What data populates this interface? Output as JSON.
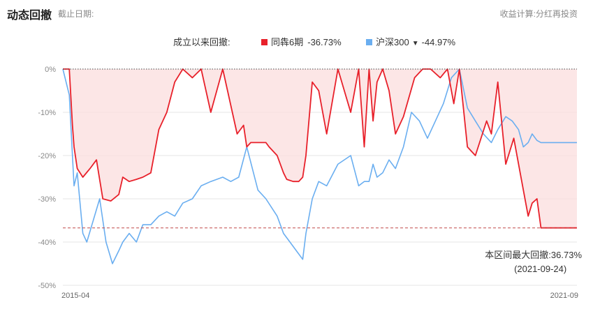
{
  "header": {
    "title": "动态回撤",
    "date_label": "截止日期:",
    "calc_label": "收益计算:分红再投资"
  },
  "legend": {
    "label": "成立以来回撤:",
    "caret": "▼"
  },
  "colors": {
    "fund": "#e8202a",
    "index": "#6aaef0",
    "fill": "#fbdede",
    "grid": "#e6e6e6",
    "dashed": "#c04848"
  },
  "max_drawdown": {
    "label": "本区间最大回撤:",
    "value": "36.73%",
    "date": "(2021-09-24)"
  },
  "chart_data": {
    "type": "line",
    "x_range": [
      "2015-04",
      "2021-09"
    ],
    "x_tick_labels": [
      "2015-04",
      "2021-09"
    ],
    "y_tick_labels": [
      "0%",
      "-10%",
      "-20%",
      "-30%",
      "-40%",
      "-50%"
    ],
    "ylim": [
      -50,
      0
    ],
    "ytick_values": [
      0,
      -10,
      -20,
      -30,
      -40,
      -50
    ],
    "grid": true,
    "max_drawdown_value": -36.73,
    "series": [
      {
        "name": "同犇6期",
        "summary": "-36.73%",
        "x": [
          2015.3,
          2015.34,
          2015.38,
          2015.42,
          2015.44,
          2015.48,
          2015.55,
          2015.64,
          2015.72,
          2015.8,
          2015.9,
          2016.0,
          2016.05,
          2016.13,
          2016.22,
          2016.3,
          2016.4,
          2016.5,
          2016.6,
          2016.7,
          2016.8,
          2016.92,
          2017.03,
          2017.15,
          2017.3,
          2017.48,
          2017.56,
          2017.6,
          2017.65,
          2017.74,
          2017.84,
          2017.88,
          2017.98,
          2018.06,
          2018.1,
          2018.18,
          2018.25,
          2018.3,
          2018.34,
          2018.42,
          2018.5,
          2018.6,
          2018.74,
          2018.9,
          2019.0,
          2019.07,
          2019.13,
          2019.18,
          2019.23,
          2019.3,
          2019.38,
          2019.46,
          2019.56,
          2019.7,
          2019.8,
          2019.9,
          2020.02,
          2020.11,
          2020.19,
          2020.26,
          2020.36,
          2020.46,
          2020.6,
          2020.66,
          2020.74,
          2020.84,
          2020.94,
          2021.06,
          2021.12,
          2021.17,
          2021.23,
          2021.28,
          2021.36,
          2021.44,
          2021.5,
          2021.56,
          2021.62,
          2021.66,
          2021.7,
          2021.73
        ],
        "values": [
          0,
          0,
          0,
          -13,
          -18,
          -23,
          -25,
          -23,
          -21,
          -30,
          -30.5,
          -29,
          -25,
          -26,
          -25.5,
          -25,
          -24,
          -14,
          -10,
          -3,
          0,
          -2,
          0,
          -10,
          0,
          -15,
          -13,
          -18,
          -17,
          -17,
          -17,
          -18,
          -20,
          -24,
          -25.5,
          -26,
          -26,
          -25,
          -20,
          -3,
          -5,
          -15,
          0,
          -10,
          0,
          -18,
          0,
          -12,
          -3,
          0,
          -5,
          -15,
          -11,
          -2,
          0,
          0,
          -2,
          0,
          -8,
          0,
          -18,
          -20,
          -12,
          -15,
          -3,
          -22,
          -16,
          -28,
          -34,
          -31,
          -30,
          -36.73,
          -36.73,
          -36.73,
          -36.73,
          -36.73,
          -36.73,
          -36.73,
          -36.73,
          -36.73
        ]
      },
      {
        "name": "沪深300",
        "summary": "-44.97%",
        "x": [
          2015.3,
          2015.34,
          2015.38,
          2015.42,
          2015.44,
          2015.48,
          2015.55,
          2015.6,
          2015.68,
          2015.76,
          2015.84,
          2015.92,
          2016.0,
          2016.05,
          2016.13,
          2016.22,
          2016.3,
          2016.4,
          2016.5,
          2016.6,
          2016.7,
          2016.8,
          2016.92,
          2017.03,
          2017.15,
          2017.3,
          2017.4,
          2017.5,
          2017.6,
          2017.74,
          2017.84,
          2017.98,
          2018.06,
          2018.14,
          2018.22,
          2018.3,
          2018.34,
          2018.42,
          2018.5,
          2018.6,
          2018.74,
          2018.9,
          2019.0,
          2019.07,
          2019.13,
          2019.18,
          2019.23,
          2019.3,
          2019.38,
          2019.46,
          2019.56,
          2019.66,
          2019.76,
          2019.86,
          2019.96,
          2020.06,
          2020.16,
          2020.26,
          2020.36,
          2020.46,
          2020.56,
          2020.66,
          2020.74,
          2020.84,
          2020.92,
          2021.0,
          2021.06,
          2021.12,
          2021.17,
          2021.23,
          2021.28,
          2021.36,
          2021.44,
          2021.5,
          2021.56,
          2021.62,
          2021.66,
          2021.7,
          2021.73
        ],
        "values": [
          0,
          -3,
          -6,
          -20,
          -27,
          -24,
          -38,
          -40,
          -35,
          -30,
          -40,
          -45,
          -42,
          -40,
          -38,
          -40,
          -36,
          -36,
          -34,
          -33,
          -34,
          -31,
          -30,
          -27,
          -26,
          -25,
          -26,
          -25,
          -18,
          -28,
          -30,
          -34,
          -38,
          -40,
          -42,
          -44,
          -38,
          -30,
          -26,
          -27,
          -22,
          -20,
          -27,
          -26,
          -26,
          -22,
          -25,
          -24,
          -21,
          -23,
          -18,
          -10,
          -12,
          -16,
          -12,
          -8,
          -2,
          0,
          -9,
          -12,
          -15,
          -17,
          -14,
          -11,
          -12,
          -14,
          -18,
          -17,
          -15,
          -16.5,
          -17,
          -17,
          -17,
          -17,
          -17,
          -17,
          -17,
          -17,
          -17
        ]
      }
    ]
  }
}
